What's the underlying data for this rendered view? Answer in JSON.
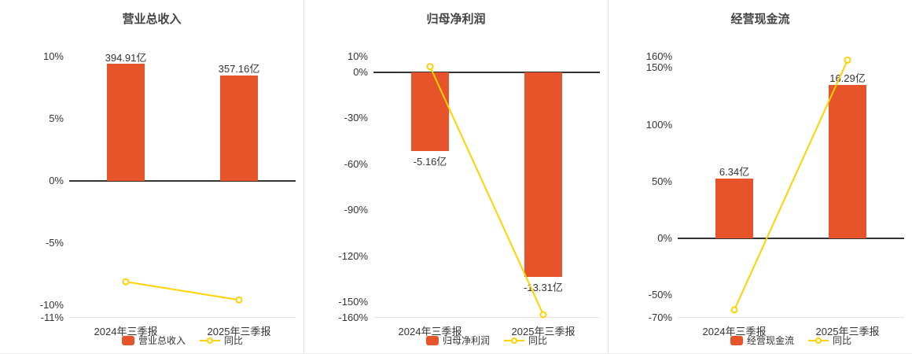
{
  "colors": {
    "bar": "#e8542a",
    "line": "#ffd200",
    "marker_fill": "#ffffff",
    "axis_text": "#333333",
    "zero_line": "#333333",
    "title_text": "#444444",
    "divider": "#e2e2e2",
    "background": "#ffffff"
  },
  "chart_data": [
    {
      "type": "bar+line",
      "title": "营业总收入",
      "categories": [
        "2024年三季报",
        "2025年三季报"
      ],
      "bar_series": {
        "name": "营业总收入",
        "value_labels": [
          "394.91亿",
          "357.16亿"
        ],
        "display_heights_axis_pct": [
          9.4,
          8.5
        ]
      },
      "line_series": {
        "name": "同比",
        "values_pct": [
          -8.1,
          -9.56
        ]
      },
      "y_axis": {
        "min": -11,
        "max": 10,
        "ticks": [
          10,
          5,
          0,
          -5,
          -10,
          -11
        ],
        "tick_labels": [
          "10%",
          "5%",
          "0%",
          "-5%",
          "-10%",
          "-11%"
        ]
      },
      "legend_position": "bottom",
      "grid": false
    },
    {
      "type": "bar+line",
      "title": "归母净利润",
      "categories": [
        "2024年三季报",
        "2025年三季报"
      ],
      "bar_series": {
        "name": "归母净利润",
        "value_labels": [
          "-5.16亿",
          "-13.31亿"
        ],
        "display_heights_axis_pct": [
          -51.7,
          -133.5
        ]
      },
      "line_series": {
        "name": "同比",
        "values_pct": [
          3.5,
          -157.95
        ]
      },
      "y_axis": {
        "min": -160,
        "max": 10,
        "ticks": [
          10,
          0,
          -30,
          -60,
          -90,
          -120,
          -150,
          -160
        ],
        "tick_labels": [
          "10%",
          "0%",
          "-30%",
          "-60%",
          "-90%",
          "-120%",
          "-150%",
          "-160%"
        ]
      },
      "legend_position": "bottom",
      "grid": false
    },
    {
      "type": "bar+line",
      "title": "经营现金流",
      "categories": [
        "2024年三季报",
        "2025年三季报"
      ],
      "bar_series": {
        "name": "经营现金流",
        "value_labels": [
          "6.34亿",
          "16.29亿"
        ],
        "display_heights_axis_pct": [
          52.5,
          135
        ]
      },
      "line_series": {
        "name": "同比",
        "values_pct": [
          -63,
          156.94
        ]
      },
      "y_axis": {
        "min": -70,
        "max": 160,
        "ticks": [
          160,
          150,
          100,
          50,
          0,
          -50,
          -70
        ],
        "tick_labels": [
          "160%",
          "150%",
          "100%",
          "50%",
          "0%",
          "-50%",
          "-70%"
        ]
      },
      "legend_position": "bottom",
      "grid": false
    }
  ]
}
